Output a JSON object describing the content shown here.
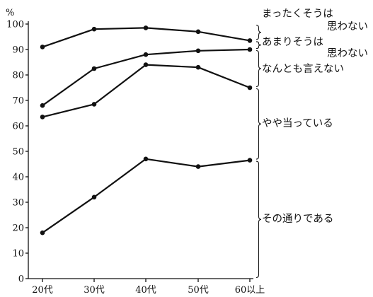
{
  "chart_data": {
    "type": "line",
    "unit": "%",
    "categories": [
      "20代",
      "30代",
      "40代",
      "50代",
      "60以上"
    ],
    "y_ticks": [
      0,
      10,
      20,
      30,
      40,
      50,
      60,
      70,
      80,
      90,
      100
    ],
    "ylim": [
      0,
      100
    ],
    "grid": false,
    "series": [
      {
        "values": [
          18,
          32,
          47,
          44,
          46.5
        ]
      },
      {
        "values": [
          63.5,
          68.5,
          84,
          83,
          75
        ]
      },
      {
        "values": [
          68,
          82.5,
          88,
          89.5,
          90
        ]
      },
      {
        "values": [
          91,
          98,
          98.5,
          97,
          93.5
        ]
      }
    ],
    "bands": [
      {
        "lines": [
          "まったくそうは",
          "思わない"
        ],
        "lower": 93.5,
        "upper": 100
      },
      {
        "lines": [
          "あまりそうは",
          "思わない"
        ],
        "lower": 90,
        "upper": 93.5
      },
      {
        "lines": [
          "なんとも言えない"
        ],
        "lower": 75,
        "upper": 90
      },
      {
        "lines": [
          "やや当っている"
        ],
        "lower": 46.5,
        "upper": 75
      },
      {
        "lines": [
          "その通りである"
        ],
        "lower": 0,
        "upper": 46.5
      }
    ]
  }
}
